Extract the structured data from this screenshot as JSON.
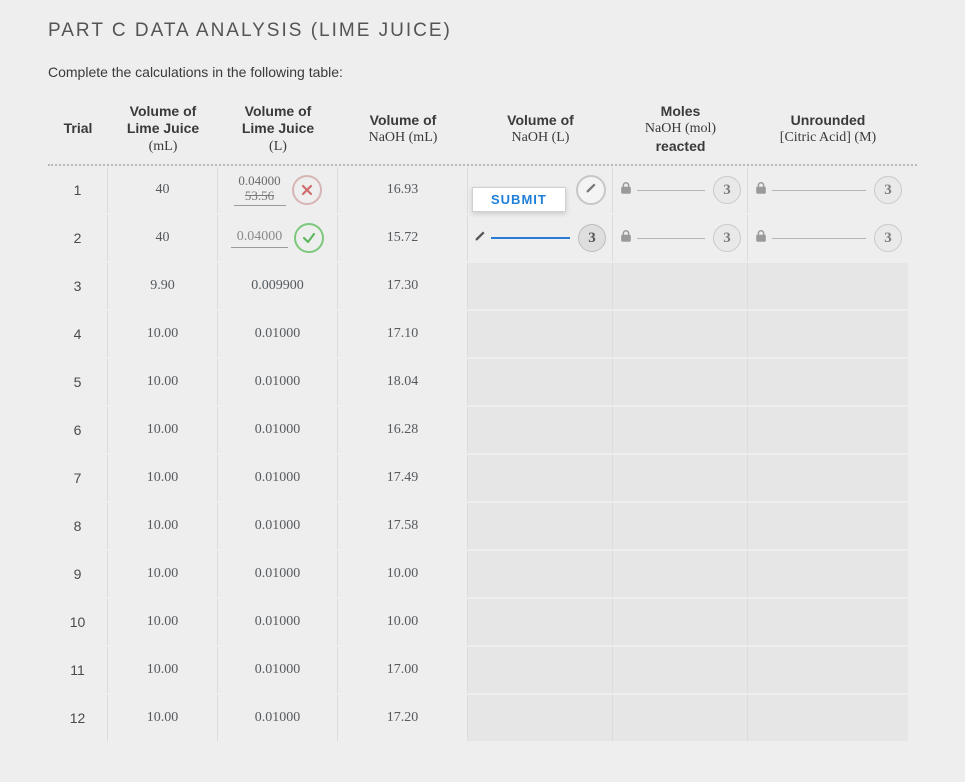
{
  "title": "PART C DATA ANALYSIS (LIME JUICE)",
  "instruction": "Complete the calculations in the following table:",
  "submit_label": "SUBMIT",
  "attempts_remaining_default": "3",
  "columns": {
    "trial": {
      "label": "Trial"
    },
    "lj_ml": {
      "line1": "Volume of",
      "line2": "Lime Juice",
      "unit": "(mL)"
    },
    "lj_l": {
      "line1": "Volume of",
      "line2": "Lime Juice",
      "unit": "(L)"
    },
    "naoh_ml": {
      "line1": "Volume of",
      "unit": "NaOH (mL)"
    },
    "naoh_l": {
      "line1": "Volume of",
      "unit": "NaOH (L)"
    },
    "moles": {
      "line1": "Moles",
      "unit": "NaOH (mol)",
      "line3": "reacted"
    },
    "citric": {
      "line1": "Unrounded",
      "unit": "[Citric Acid] (M)"
    }
  },
  "rows": [
    {
      "trial": "1",
      "lj_ml": "40",
      "lj_l_corrected": "0.04000",
      "lj_l_entered": "53.56",
      "lj_l_state": "wrong",
      "naoh_ml": "16.93",
      "naoh_l_state": "editable",
      "moles_state": "locked",
      "citric_state": "locked",
      "attempts": "3"
    },
    {
      "trial": "2",
      "lj_ml": "40",
      "lj_l_entered": "0.04000",
      "lj_l_state": "correct",
      "naoh_ml": "15.72",
      "naoh_l_state": "focus",
      "moles_state": "locked",
      "citric_state": "locked",
      "attempts": "3"
    },
    {
      "trial": "3",
      "lj_ml": "9.90",
      "lj_l": "0.009900",
      "naoh_ml": "17.30"
    },
    {
      "trial": "4",
      "lj_ml": "10.00",
      "lj_l": "0.01000",
      "naoh_ml": "17.10"
    },
    {
      "trial": "5",
      "lj_ml": "10.00",
      "lj_l": "0.01000",
      "naoh_ml": "18.04"
    },
    {
      "trial": "6",
      "lj_ml": "10.00",
      "lj_l": "0.01000",
      "naoh_ml": "16.28"
    },
    {
      "trial": "7",
      "lj_ml": "10.00",
      "lj_l": "0.01000",
      "naoh_ml": "17.49"
    },
    {
      "trial": "8",
      "lj_ml": "10.00",
      "lj_l": "0.01000",
      "naoh_ml": "17.58"
    },
    {
      "trial": "9",
      "lj_ml": "10.00",
      "lj_l": "0.01000",
      "naoh_ml": "10.00"
    },
    {
      "trial": "10",
      "lj_ml": "10.00",
      "lj_l": "0.01000",
      "naoh_ml": "10.00"
    },
    {
      "trial": "11",
      "lj_ml": "10.00",
      "lj_l": "0.01000",
      "naoh_ml": "17.00"
    },
    {
      "trial": "12",
      "lj_ml": "10.00",
      "lj_l": "0.01000",
      "naoh_ml": "17.20"
    }
  ],
  "colors": {
    "background": "#eeeeee",
    "accent": "#1f7fd8",
    "correct": "#5fb85f",
    "wrong": "#d06c6c",
    "border": "#dcdcdc"
  }
}
